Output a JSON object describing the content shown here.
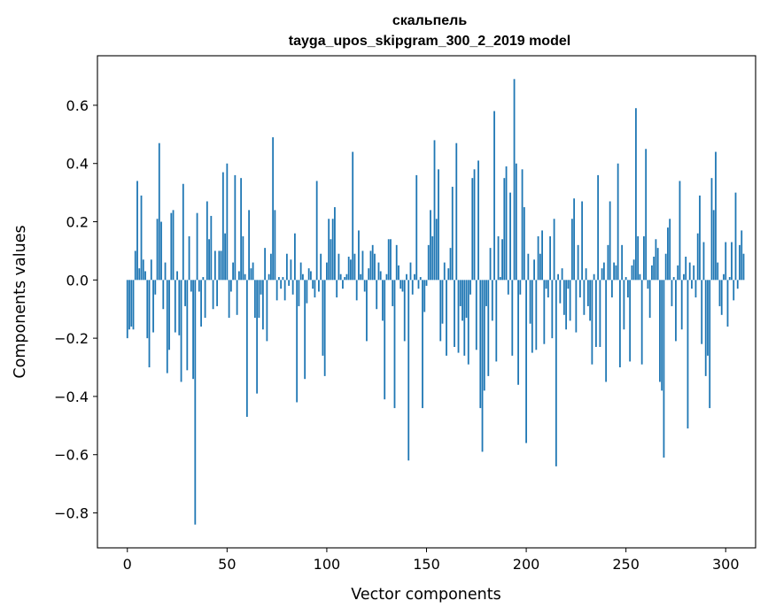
{
  "chart_data": {
    "type": "bar",
    "title": "скальпель",
    "subtitle": "tayga_upos_skipgram_300_2_2019 model",
    "xlabel": "Vector components",
    "ylabel": "Components values",
    "xlim": [
      -15,
      315
    ],
    "ylim": [
      -0.92,
      0.77
    ],
    "xticks": [
      0,
      50,
      100,
      150,
      200,
      250,
      300
    ],
    "yticks": [
      -0.8,
      -0.6,
      -0.4,
      -0.2,
      0.0,
      0.2,
      0.4,
      0.6
    ],
    "ytick_labels": [
      "−0.8",
      "−0.6",
      "−0.4",
      "−0.2",
      "0.0",
      "0.2",
      "0.4",
      "0.6"
    ],
    "bar_color": "#1f77b4",
    "grid": false,
    "values": [
      -0.2,
      -0.17,
      -0.16,
      -0.17,
      0.1,
      0.34,
      0.04,
      0.29,
      0.07,
      0.03,
      -0.2,
      -0.3,
      0.07,
      -0.18,
      -0.05,
      0.21,
      0.47,
      0.2,
      -0.1,
      0.06,
      -0.32,
      -0.24,
      0.23,
      0.24,
      -0.18,
      0.03,
      -0.19,
      -0.35,
      0.33,
      -0.09,
      -0.31,
      0.15,
      -0.04,
      -0.34,
      -0.84,
      0.23,
      -0.04,
      -0.16,
      0.01,
      -0.13,
      0.27,
      0.14,
      0.22,
      -0.1,
      0.1,
      -0.09,
      0.1,
      0.1,
      0.37,
      0.16,
      0.4,
      -0.13,
      -0.04,
      0.06,
      0.36,
      -0.12,
      0.03,
      0.35,
      0.15,
      0.02,
      -0.47,
      0.24,
      0.04,
      0.06,
      -0.13,
      -0.39,
      -0.13,
      -0.05,
      -0.17,
      0.11,
      -0.21,
      0.02,
      0.09,
      0.49,
      0.24,
      -0.07,
      0.01,
      -0.03,
      0.01,
      -0.07,
      0.09,
      -0.02,
      0.07,
      -0.05,
      0.16,
      -0.42,
      -0.09,
      0.06,
      0.02,
      -0.34,
      -0.08,
      0.04,
      0.03,
      -0.03,
      -0.06,
      0.34,
      -0.04,
      0.09,
      -0.26,
      -0.33,
      0.06,
      0.21,
      0.14,
      0.21,
      0.25,
      -0.06,
      0.09,
      0.02,
      -0.03,
      0.01,
      0.02,
      0.08,
      0.07,
      0.44,
      0.09,
      -0.07,
      0.17,
      0.02,
      0.1,
      -0.04,
      -0.21,
      0.04,
      0.1,
      0.12,
      0.09,
      -0.1,
      0.06,
      0.03,
      -0.14,
      -0.41,
      0.02,
      0.14,
      0.14,
      -0.09,
      -0.44,
      0.12,
      0.05,
      -0.03,
      -0.04,
      -0.21,
      0.02,
      -0.62,
      0.06,
      -0.05,
      0.02,
      0.36,
      -0.03,
      0.01,
      -0.44,
      -0.11,
      -0.02,
      0.12,
      0.24,
      0.15,
      0.48,
      0.21,
      0.38,
      -0.21,
      -0.15,
      0.06,
      -0.26,
      0.04,
      0.11,
      0.32,
      -0.23,
      0.47,
      -0.25,
      -0.09,
      -0.14,
      -0.26,
      -0.13,
      -0.29,
      -0.05,
      0.35,
      0.38,
      -0.24,
      0.41,
      -0.44,
      -0.59,
      -0.38,
      -0.09,
      -0.33,
      0.11,
      -0.14,
      0.58,
      -0.28,
      0.15,
      0.01,
      0.14,
      0.35,
      0.39,
      -0.05,
      0.3,
      -0.26,
      0.69,
      0.4,
      -0.36,
      -0.05,
      0.38,
      0.25,
      -0.56,
      0.09,
      -0.15,
      -0.25,
      0.07,
      -0.24,
      0.15,
      0.09,
      0.17,
      -0.22,
      -0.03,
      -0.06,
      0.15,
      -0.2,
      0.21,
      -0.64,
      0.02,
      -0.08,
      0.04,
      -0.12,
      -0.17,
      -0.03,
      -0.14,
      0.21,
      0.28,
      -0.18,
      0.12,
      -0.06,
      0.27,
      -0.12,
      0.04,
      -0.09,
      -0.14,
      -0.29,
      0.02,
      -0.23,
      0.36,
      -0.23,
      0.04,
      0.06,
      -0.35,
      0.12,
      0.27,
      -0.06,
      0.06,
      0.05,
      0.4,
      -0.3,
      0.12,
      -0.17,
      0.01,
      -0.06,
      -0.28,
      0.05,
      0.07,
      0.59,
      0.15,
      0.02,
      -0.29,
      0.15,
      0.45,
      -0.03,
      -0.13,
      0.05,
      0.08,
      0.14,
      0.11,
      -0.35,
      -0.38,
      -0.61,
      0.09,
      0.18,
      0.21,
      -0.09,
      0.01,
      -0.21,
      0.05,
      0.34,
      -0.17,
      0.02,
      0.08,
      -0.51,
      0.06,
      -0.03,
      0.05,
      -0.06,
      0.16,
      0.29,
      -0.22,
      0.13,
      -0.33,
      -0.26,
      -0.44,
      0.35,
      0.24,
      0.44,
      0.06,
      -0.09,
      -0.12,
      0.02,
      0.13,
      -0.16,
      0.01,
      0.13,
      -0.07,
      0.3,
      -0.03,
      0.12,
      0.17,
      0.09
    ]
  }
}
